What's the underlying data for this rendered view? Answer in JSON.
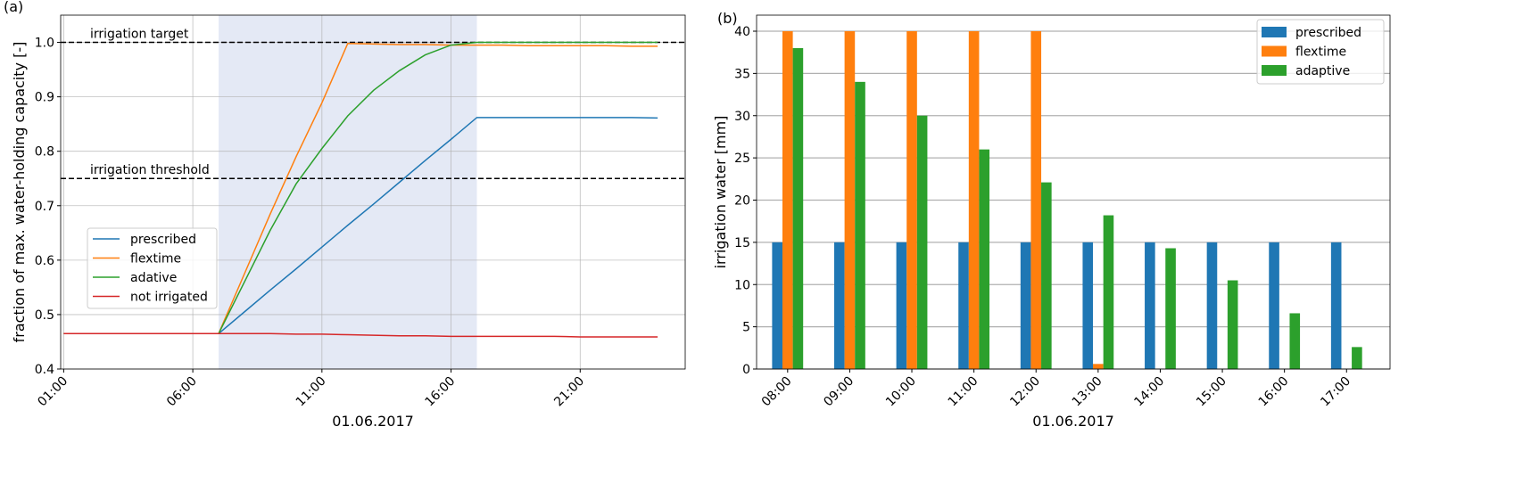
{
  "chart_data": [
    {
      "type": "line",
      "panel_label": "(a)",
      "xlabel": "01.06.2017",
      "ylabel": "fraction of max. water-holding capacity [-]",
      "ylim": [
        0.4,
        1.05
      ],
      "xlim": [
        "2017-06-01T00:53",
        "2017-06-02T01:04"
      ],
      "x_tick_labels": [
        "01:00",
        "06:00",
        "11:00",
        "16:00",
        "21:00"
      ],
      "x_ticks": [
        "2017-06-01T01:00",
        "2017-06-01T06:00",
        "2017-06-01T11:00",
        "2017-06-01T16:00",
        "2017-06-01T21:00"
      ],
      "y_ticks": [
        0.4,
        0.5,
        0.6,
        0.7,
        0.8,
        0.9,
        1.0
      ],
      "y_tick_labels": [
        "0.4",
        "0.5",
        "0.6",
        "0.7",
        "0.8",
        "0.9",
        "1.0"
      ],
      "grid": true,
      "legend_position": "center-left",
      "shaded_span": {
        "from": "2017-06-01T07:00",
        "to": "2017-06-01T17:00",
        "color": "#e4e9f5"
      },
      "reference_lines": [
        {
          "label": "irrigation target",
          "y": 1.0,
          "style": "dashed",
          "color": "#000000"
        },
        {
          "label": "irrigation threshold",
          "y": 0.75,
          "style": "dashed",
          "color": "#000000"
        }
      ],
      "x": [
        "2017-06-01T01:00",
        "2017-06-01T02:00",
        "2017-06-01T03:00",
        "2017-06-01T04:00",
        "2017-06-01T05:00",
        "2017-06-01T06:00",
        "2017-06-01T07:00",
        "2017-06-01T08:00",
        "2017-06-01T09:00",
        "2017-06-01T10:00",
        "2017-06-01T11:00",
        "2017-06-01T12:00",
        "2017-06-01T13:00",
        "2017-06-01T14:00",
        "2017-06-01T15:00",
        "2017-06-01T16:00",
        "2017-06-01T17:00",
        "2017-06-01T18:00",
        "2017-06-01T19:00",
        "2017-06-01T20:00",
        "2017-06-01T21:00",
        "2017-06-01T22:00",
        "2017-06-01T23:00",
        "2017-06-02T00:00"
      ],
      "series": [
        {
          "name": "prescribed",
          "color": "#1f77b4",
          "values": [
            0.465,
            0.465,
            0.465,
            0.465,
            0.465,
            0.465,
            0.465,
            0.505,
            0.545,
            0.584,
            0.624,
            0.664,
            0.703,
            0.743,
            0.783,
            0.822,
            0.862,
            0.862,
            0.862,
            0.862,
            0.862,
            0.862,
            0.862,
            0.861
          ]
        },
        {
          "name": "flextime",
          "color": "#ff7f0e",
          "values": [
            0.465,
            0.465,
            0.465,
            0.465,
            0.465,
            0.465,
            0.465,
            0.575,
            0.685,
            0.79,
            0.889,
            0.998,
            0.997,
            0.996,
            0.996,
            0.995,
            0.995,
            0.995,
            0.994,
            0.994,
            0.994,
            0.994,
            0.993,
            0.993
          ]
        },
        {
          "name": "adative",
          "color": "#2ca02c",
          "values": [
            0.465,
            0.465,
            0.465,
            0.465,
            0.465,
            0.465,
            0.465,
            0.56,
            0.655,
            0.74,
            0.805,
            0.865,
            0.912,
            0.948,
            0.977,
            0.995,
            1.0,
            1.0,
            1.0,
            1.0,
            1.0,
            1.0,
            1.0,
            1.0
          ]
        },
        {
          "name": "not irrigated",
          "color": "#d62728",
          "values": [
            0.465,
            0.465,
            0.465,
            0.465,
            0.465,
            0.465,
            0.465,
            0.465,
            0.465,
            0.464,
            0.464,
            0.463,
            0.462,
            0.461,
            0.461,
            0.46,
            0.46,
            0.46,
            0.46,
            0.46,
            0.459,
            0.459,
            0.459,
            0.459
          ]
        }
      ]
    },
    {
      "type": "bar",
      "panel_label": "(b)",
      "xlabel": "01.06.2017",
      "ylabel": "irrigation water [mm]",
      "ylim": [
        0,
        41.9
      ],
      "y_ticks": [
        0,
        5,
        10,
        15,
        20,
        25,
        30,
        35,
        40
      ],
      "y_tick_labels": [
        "0",
        "5",
        "10",
        "15",
        "20",
        "25",
        "30",
        "35",
        "40"
      ],
      "grid": "y-only",
      "legend_position": "top-right",
      "categories": [
        "08:00",
        "09:00",
        "10:00",
        "11:00",
        "12:00",
        "13:00",
        "14:00",
        "15:00",
        "16:00",
        "17:00"
      ],
      "series": [
        {
          "name": "prescribed",
          "color": "#1f77b4",
          "values": [
            15,
            15,
            15,
            15,
            15,
            15,
            15,
            15,
            15,
            15
          ]
        },
        {
          "name": "flextime",
          "color": "#ff7f0e",
          "values": [
            40,
            40,
            40,
            40,
            40,
            0.6,
            0,
            0,
            0,
            0
          ]
        },
        {
          "name": "adaptive",
          "color": "#2ca02c",
          "values": [
            38,
            34,
            30,
            26,
            22.1,
            18.2,
            14.3,
            10.5,
            6.6,
            2.6
          ]
        }
      ]
    }
  ]
}
